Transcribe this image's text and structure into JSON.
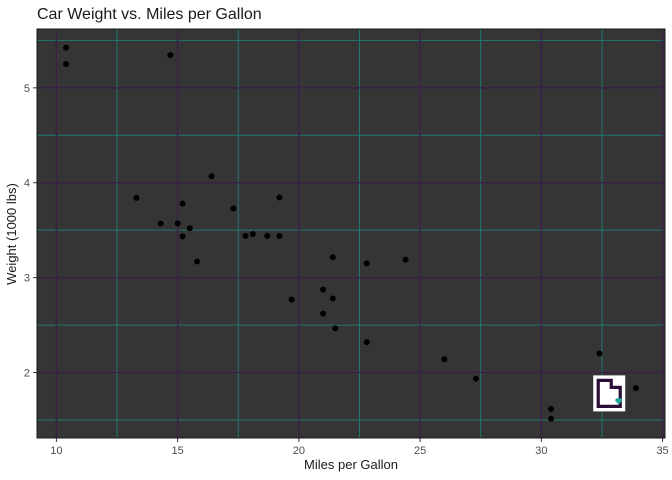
{
  "chart_data": {
    "type": "scatter",
    "title": "Car Weight vs. Miles per Gallon",
    "xlabel": "Miles per Gallon",
    "ylabel": "Weight (1000 lbs)",
    "xlim": [
      9.2,
      35.1
    ],
    "ylim": [
      1.31,
      5.62
    ],
    "x_ticks": [
      10,
      15,
      20,
      25,
      30,
      35
    ],
    "y_ticks": [
      2,
      3,
      4,
      5
    ],
    "x_tick_labels": [
      "10",
      "15",
      "20",
      "25",
      "30",
      "35"
    ],
    "y_tick_labels": [
      "2",
      "3",
      "4",
      "5"
    ],
    "x_minor": [
      12.5,
      17.5,
      22.5,
      27.5,
      32.5
    ],
    "y_minor": [
      1.5,
      2.5,
      3.5,
      4.5,
      5.5
    ],
    "grid": true,
    "background_color": "#353535",
    "major_grid_color": "#3a1f48",
    "minor_grid_color": "#1f7a70",
    "point_color": "#000000",
    "x": [
      21.0,
      21.0,
      22.8,
      21.4,
      18.7,
      18.1,
      14.3,
      24.4,
      22.8,
      19.2,
      17.8,
      16.4,
      17.3,
      15.2,
      10.4,
      10.4,
      14.7,
      32.4,
      30.4,
      33.9,
      21.5,
      15.5,
      15.2,
      13.3,
      19.2,
      27.3,
      26.0,
      30.4,
      15.8,
      19.7,
      15.0,
      21.4
    ],
    "y": [
      2.62,
      2.875,
      2.32,
      3.215,
      3.44,
      3.46,
      3.57,
      3.19,
      3.15,
      3.44,
      3.44,
      4.07,
      3.73,
      3.78,
      5.25,
      5.424,
      5.345,
      2.2,
      1.615,
      1.835,
      2.465,
      3.52,
      3.435,
      3.84,
      3.845,
      1.935,
      2.14,
      1.513,
      3.17,
      2.77,
      3.57,
      2.78
    ],
    "annotation_icon": "utah-state-outline-icon",
    "annotation_position": [
      32.8,
      1.78
    ],
    "annotation_colors": {
      "outline": "#2b0f36",
      "fill": "#ffffff",
      "heart": "#1fa69a"
    }
  }
}
